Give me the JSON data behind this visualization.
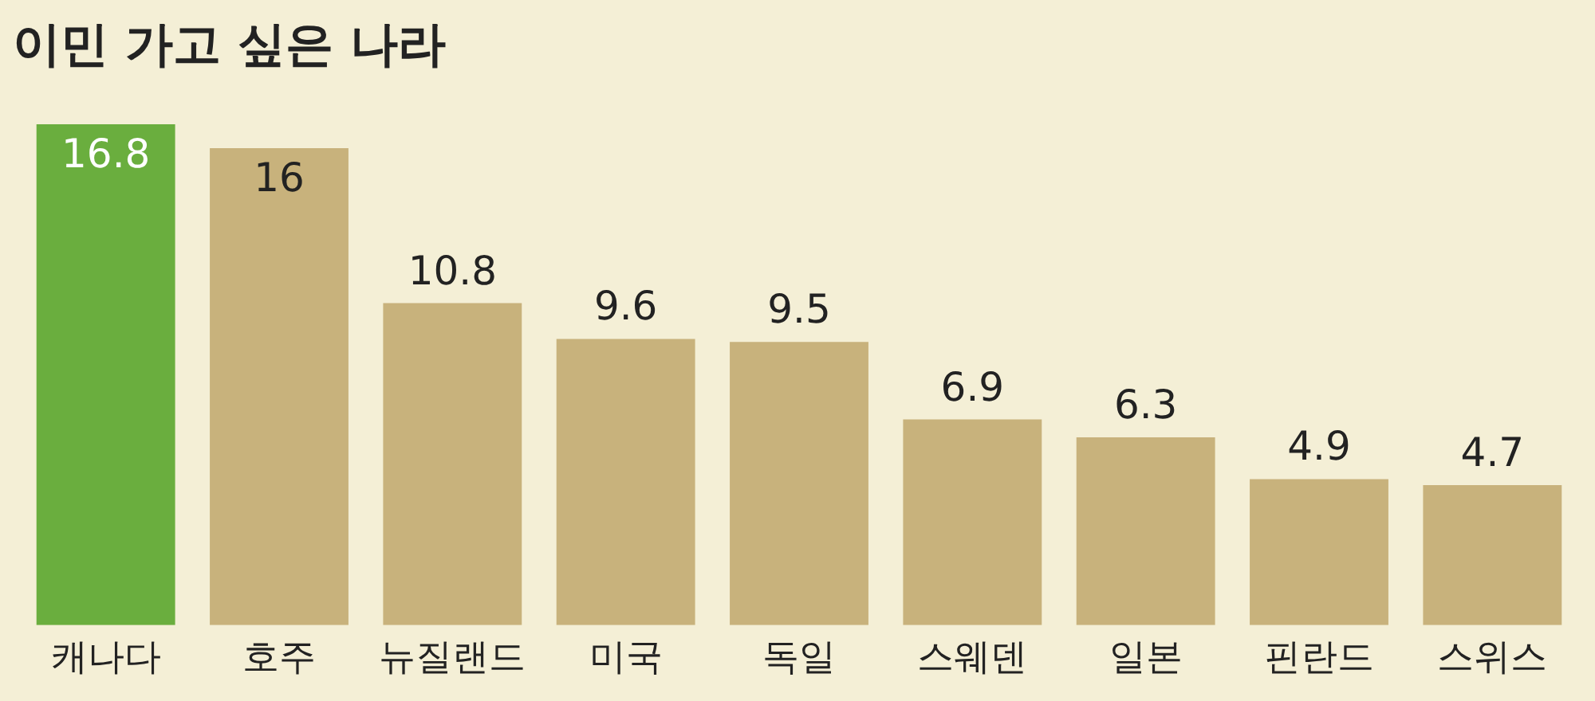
{
  "chart_data": {
    "type": "bar",
    "title": "이민 가고 싶은 나라",
    "categories": [
      "캐나다",
      "호주",
      "뉴질랜드",
      "미국",
      "독일",
      "스웨덴",
      "일본",
      "핀란드",
      "스위스"
    ],
    "values": [
      16.8,
      16,
      10.8,
      9.6,
      9.5,
      6.9,
      6.3,
      4.9,
      4.7
    ],
    "colors": [
      "#6aae3e",
      "#c8b27c",
      "#c8b27c",
      "#c8b27c",
      "#c8b27c",
      "#c8b27c",
      "#c8b27c",
      "#c8b27c",
      "#c8b27c"
    ],
    "data_labels": true,
    "legend": false,
    "grid": false
  }
}
